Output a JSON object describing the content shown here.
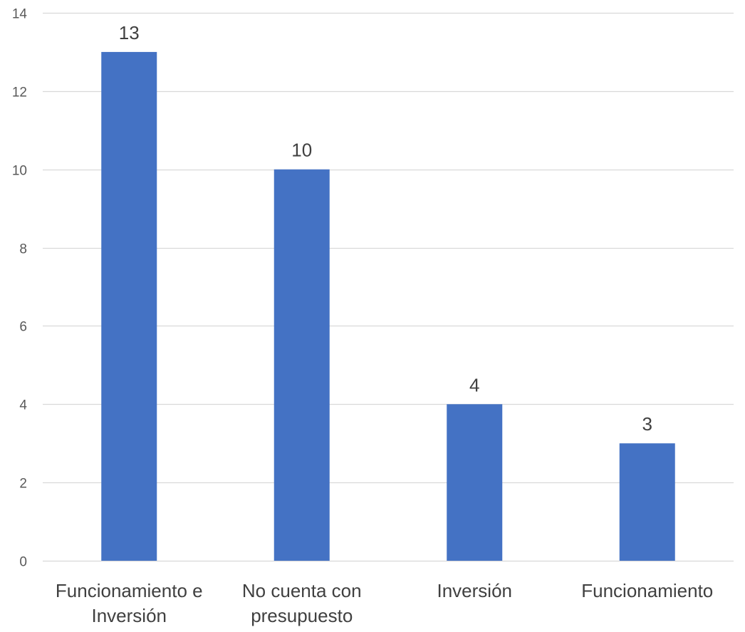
{
  "chart_data": {
    "type": "bar",
    "title": "",
    "xlabel": "",
    "ylabel": "",
    "categories": [
      [
        "Funcionamiento e",
        "Inversión"
      ],
      [
        "No cuenta con",
        "presupuesto"
      ],
      [
        "Inversión"
      ],
      [
        "Funcionamiento"
      ]
    ],
    "values": [
      13,
      10,
      4,
      3
    ],
    "data_labels": [
      "13",
      "10",
      "4",
      "3"
    ],
    "ylim": [
      0,
      14
    ],
    "yticks": [
      0,
      2,
      4,
      6,
      8,
      10,
      12,
      14
    ],
    "grid": true,
    "legend": "none",
    "colors": {
      "bar": "#4472C4",
      "grid": "#D9D9D9",
      "axis": "#D9D9D9",
      "tick_text": "#595959",
      "category_text": "#404040",
      "data_label_text": "#404040"
    }
  }
}
